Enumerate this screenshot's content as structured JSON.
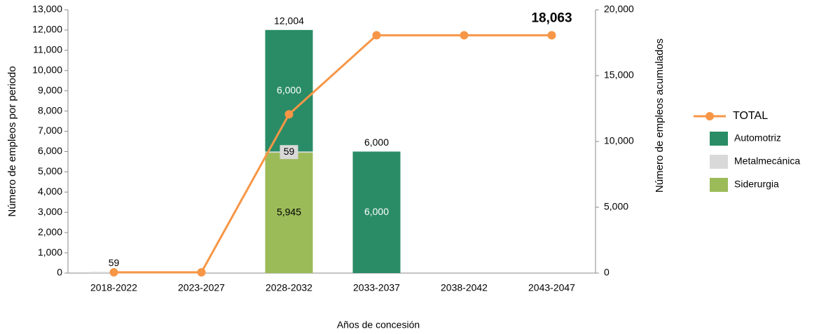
{
  "chart_data": {
    "type": "stacked-bar-line",
    "categories": [
      "2018-2022",
      "2023-2027",
      "2028-2032",
      "2033-2037",
      "2038-2042",
      "2043-2047"
    ],
    "series": [
      {
        "name": "Siderurgia",
        "color": "#9bbb59",
        "values": [
          0,
          0,
          5945,
          0,
          0,
          0
        ],
        "value_labels": [
          null,
          null,
          "5,945",
          null,
          null,
          null
        ]
      },
      {
        "name": "Metalmecánica",
        "color": "#d9d9d9",
        "values": [
          59,
          0,
          59,
          0,
          0,
          0
        ],
        "value_labels": [
          "59",
          null,
          "59",
          null,
          null,
          null
        ]
      },
      {
        "name": "Automotriz",
        "color": "#2a8c66",
        "values": [
          0,
          0,
          6000,
          6000,
          0,
          0
        ],
        "value_labels": [
          null,
          null,
          "6,000",
          "6,000",
          null,
          null
        ]
      },
      {
        "name": "TOTAL",
        "type": "line",
        "axis": "y2",
        "color": "#f79646",
        "values": [
          59,
          59,
          12063,
          18063,
          18063,
          18063
        ],
        "value_labels": [
          null,
          null,
          null,
          null,
          null,
          "18,063"
        ]
      }
    ],
    "stack_totals": [
      null,
      null,
      12004,
      6000,
      null,
      null
    ],
    "stack_total_labels": [
      null,
      null,
      "12,004",
      "6,000",
      null,
      null
    ],
    "x_label": "Años de concesión",
    "y_label": "Número de empleos por periodo",
    "y2_label": "Número de empleos acumulados",
    "ylim": [
      0,
      13000
    ],
    "yticks": [
      0,
      {
        "value": 1000,
        "label": "1,000"
      },
      {
        "value": 2000,
        "label": "2,000"
      },
      {
        "value": 3000,
        "label": "3,000"
      },
      {
        "value": 4000,
        "label": "4,000"
      },
      {
        "value": 5000,
        "label": "5,000"
      },
      {
        "value": 6000,
        "label": "6,000"
      },
      {
        "value": 7000,
        "label": "7,000"
      },
      {
        "value": 8000,
        "label": "8,000"
      },
      {
        "value": 9000,
        "label": "9,000"
      },
      {
        "value": 10000,
        "label": "10,000"
      },
      {
        "value": 11000,
        "label": "11,000"
      },
      {
        "value": 12000,
        "label": "12,000"
      },
      {
        "value": 13000,
        "label": "13,000"
      }
    ],
    "y2lim": [
      0,
      20000
    ],
    "y2ticks": [
      0,
      {
        "value": 5000,
        "label": "5,000"
      },
      {
        "value": 10000,
        "label": "10,000"
      },
      {
        "value": 15000,
        "label": "15,000"
      },
      {
        "value": 20000,
        "label": "20,000"
      }
    ],
    "grid": false,
    "legend": "right"
  }
}
